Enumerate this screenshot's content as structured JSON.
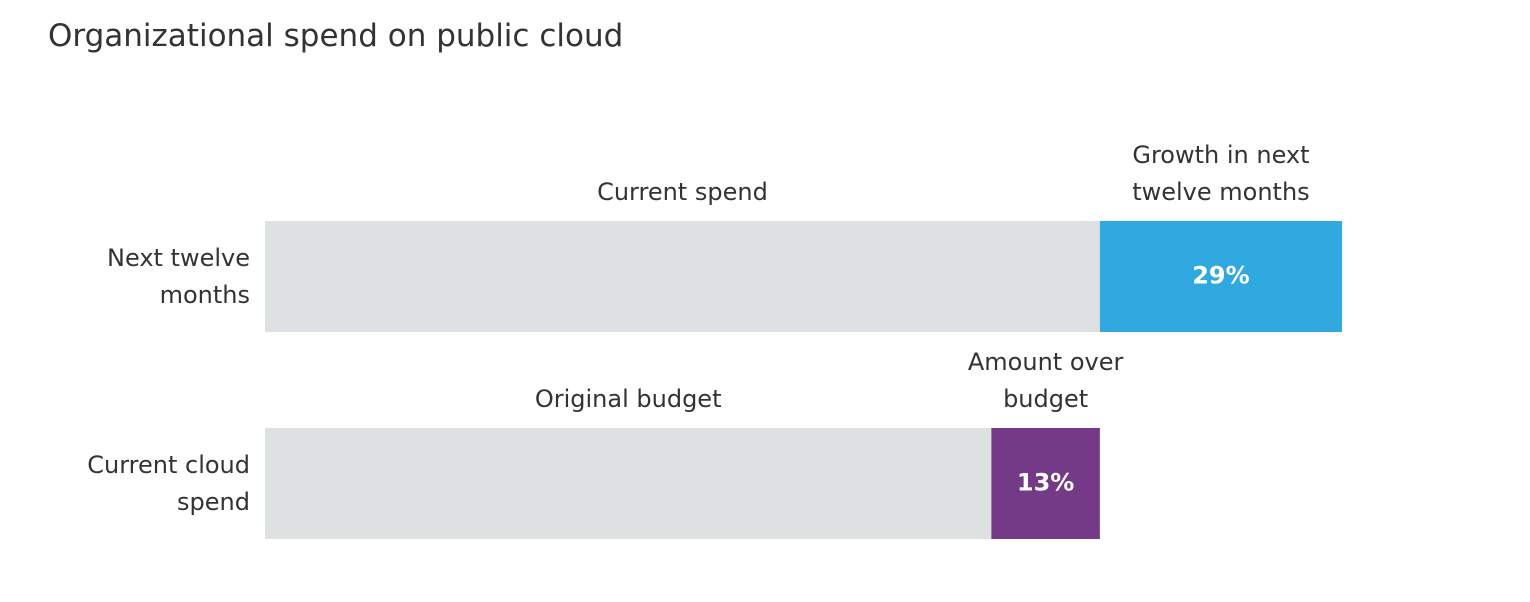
{
  "chart_data": {
    "type": "bar",
    "orientation": "horizontal",
    "stacked": true,
    "title": "Organizational spend on public cloud",
    "categories": [
      "Next twelve months",
      "Current cloud spend"
    ],
    "series": [
      {
        "name": "Current spend",
        "color": "#dee1e1",
        "values": [
          100,
          null
        ]
      },
      {
        "name": "Growth in next twelve months",
        "color": "#2fa9e0",
        "values": [
          29,
          null
        ],
        "value_labels": [
          "29%",
          null
        ]
      },
      {
        "name": "Original budget",
        "color": "#dee1e1",
        "values": [
          null,
          87
        ]
      },
      {
        "name": "Amount over budget",
        "color": "#743a87",
        "values": [
          null,
          13
        ],
        "value_labels": [
          null,
          "13%"
        ]
      }
    ]
  }
}
